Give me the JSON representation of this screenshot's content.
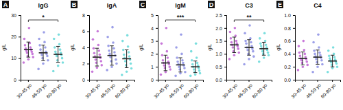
{
  "chart_data": [
    {
      "type": "scatter",
      "panel": "A",
      "title": "IgG",
      "ylabel": "g/L",
      "categories": [
        "30-45 yo",
        "46-59 yo",
        "60-80 yo"
      ],
      "colors": [
        "#b54ccc",
        "#7b7fe0",
        "#4fd3d3"
      ],
      "points": [
        [
          8,
          9.5,
          10.5,
          11,
          12,
          12.5,
          13,
          13.5,
          14,
          14.5,
          15,
          16,
          17,
          19,
          24
        ],
        [
          5,
          7.5,
          9,
          10,
          11,
          11.5,
          12,
          12.5,
          13,
          14,
          15,
          16,
          17.5,
          19,
          22
        ],
        [
          4,
          6.5,
          8,
          9,
          10,
          11,
          11.5,
          12,
          12.5,
          13,
          14,
          15,
          16.5,
          19,
          21
        ]
      ],
      "values": [
        14,
        12.5,
        11.8
      ],
      "error": [
        3.5,
        3.6,
        3.7
      ],
      "ylim": [
        0,
        30
      ],
      "yticks": [
        0,
        10,
        20,
        30
      ],
      "annotations": [
        {
          "text": "*",
          "from": 0,
          "to": 2
        }
      ]
    },
    {
      "type": "scatter",
      "panel": "B",
      "title": "IgA",
      "ylabel": "g/L",
      "categories": [
        "30-45 yo",
        "46-59 yo",
        "60-80 yo"
      ],
      "colors": [
        "#b54ccc",
        "#7b7fe0",
        "#4fd3d3"
      ],
      "points": [
        [
          1,
          1.5,
          1.8,
          2.1,
          2.3,
          2.5,
          2.7,
          2.9,
          3.1,
          3.3,
          3.6,
          3.9,
          4.3,
          5,
          6
        ],
        [
          1.2,
          1.6,
          2,
          2.3,
          2.5,
          2.8,
          3,
          3.2,
          3.4,
          3.6,
          3.9,
          4.2,
          4.6,
          5.3,
          6.5
        ],
        [
          0.6,
          1,
          1.4,
          1.8,
          2,
          2.3,
          2.5,
          2.7,
          2.9,
          3.1,
          3.4,
          3.7,
          4.1,
          4.8,
          5.5
        ]
      ],
      "values": [
        2.8,
        3.0,
        2.6
      ],
      "error": [
        1.1,
        1.2,
        1.1
      ],
      "ylim": [
        0,
        8
      ],
      "yticks": [
        0,
        2,
        4,
        6,
        8
      ],
      "annotations": []
    },
    {
      "type": "scatter",
      "panel": "C",
      "title": "IgM",
      "ylabel": "g/L",
      "categories": [
        "30-45 yo",
        "46-59 yo",
        "60-80 yo"
      ],
      "colors": [
        "#b54ccc",
        "#7b7fe0",
        "#4fd3d3"
      ],
      "points": [
        [
          0.4,
          0.6,
          0.8,
          0.9,
          1,
          1.1,
          1.2,
          1.3,
          1.4,
          1.5,
          1.7,
          1.9,
          2.2,
          2.8,
          4
        ],
        [
          0.3,
          0.5,
          0.6,
          0.8,
          0.9,
          1,
          1.1,
          1.2,
          1.3,
          1.4,
          1.5,
          1.7,
          2,
          2.5,
          3.5
        ],
        [
          0.3,
          0.4,
          0.5,
          0.6,
          0.7,
          0.8,
          0.9,
          1,
          1.1,
          1.2,
          1.3,
          1.5,
          1.7,
          2.2,
          2.8
        ]
      ],
      "values": [
        1.3,
        1.15,
        1.0
      ],
      "error": [
        0.6,
        0.55,
        0.45
      ],
      "ylim": [
        0,
        5
      ],
      "yticks": [
        0,
        1,
        2,
        3,
        4,
        5
      ],
      "annotations": [
        {
          "text": "***",
          "from": 0,
          "to": 2
        }
      ]
    },
    {
      "type": "scatter",
      "panel": "D",
      "title": "C3",
      "ylabel": "g/L",
      "categories": [
        "30-45 yo",
        "46-59 yo",
        "60-80 yo"
      ],
      "colors": [
        "#b54ccc",
        "#7b7fe0",
        "#4fd3d3"
      ],
      "points": [
        [
          0.8,
          0.95,
          1.05,
          1.1,
          1.2,
          1.25,
          1.3,
          1.35,
          1.4,
          1.45,
          1.5,
          1.6,
          1.7,
          1.85,
          2
        ],
        [
          0.6,
          0.8,
          0.9,
          1,
          1.1,
          1.15,
          1.2,
          1.25,
          1.3,
          1.4,
          1.45,
          1.5,
          1.6,
          1.8,
          2.1
        ],
        [
          0.7,
          0.85,
          0.95,
          1,
          1.05,
          1.1,
          1.15,
          1.2,
          1.25,
          1.3,
          1.35,
          1.4,
          1.5,
          1.6,
          1.8
        ]
      ],
      "values": [
        1.35,
        1.25,
        1.2
      ],
      "error": [
        0.3,
        0.3,
        0.25
      ],
      "ylim": [
        0,
        2.5
      ],
      "yticks": [
        {
          "value": 0,
          "label": "0.0"
        },
        {
          "value": 0.5,
          "label": "0.5"
        },
        {
          "value": 1,
          "label": "1.0"
        },
        {
          "value": 1.5,
          "label": "1.5"
        },
        {
          "value": 2,
          "label": "2.0"
        },
        {
          "value": 2.5,
          "label": "2.5"
        }
      ],
      "annotations": [
        {
          "text": "**",
          "from": 0,
          "to": 2
        }
      ]
    },
    {
      "type": "scatter",
      "panel": "E",
      "title": "C4",
      "ylabel": "g/L",
      "categories": [
        "30-45 yo",
        "46-59 yo",
        "60-80 yo"
      ],
      "colors": [
        "#b54ccc",
        "#7b7fe0",
        "#4fd3d3"
      ],
      "points": [
        [
          0.15,
          0.2,
          0.23,
          0.26,
          0.28,
          0.3,
          0.32,
          0.33,
          0.35,
          0.37,
          0.4,
          0.42,
          0.46,
          0.52,
          0.6
        ],
        [
          0.12,
          0.2,
          0.24,
          0.27,
          0.3,
          0.32,
          0.34,
          0.36,
          0.38,
          0.4,
          0.42,
          0.45,
          0.5,
          0.58,
          0.7
        ],
        [
          0.12,
          0.18,
          0.2,
          0.23,
          0.25,
          0.27,
          0.28,
          0.3,
          0.31,
          0.33,
          0.35,
          0.37,
          0.4,
          0.45,
          0.5
        ]
      ],
      "values": [
        0.33,
        0.35,
        0.29
      ],
      "error": [
        0.1,
        0.11,
        0.09
      ],
      "ylim": [
        0,
        1
      ],
      "yticks": [
        {
          "value": 0,
          "label": "0.0"
        },
        {
          "value": 0.2,
          "label": "0.2"
        },
        {
          "value": 0.4,
          "label": "0.4"
        },
        {
          "value": 0.6,
          "label": "0.6"
        },
        {
          "value": 0.8,
          "label": "0.8"
        },
        {
          "value": 1,
          "label": "1.0"
        }
      ],
      "annotations": []
    }
  ]
}
